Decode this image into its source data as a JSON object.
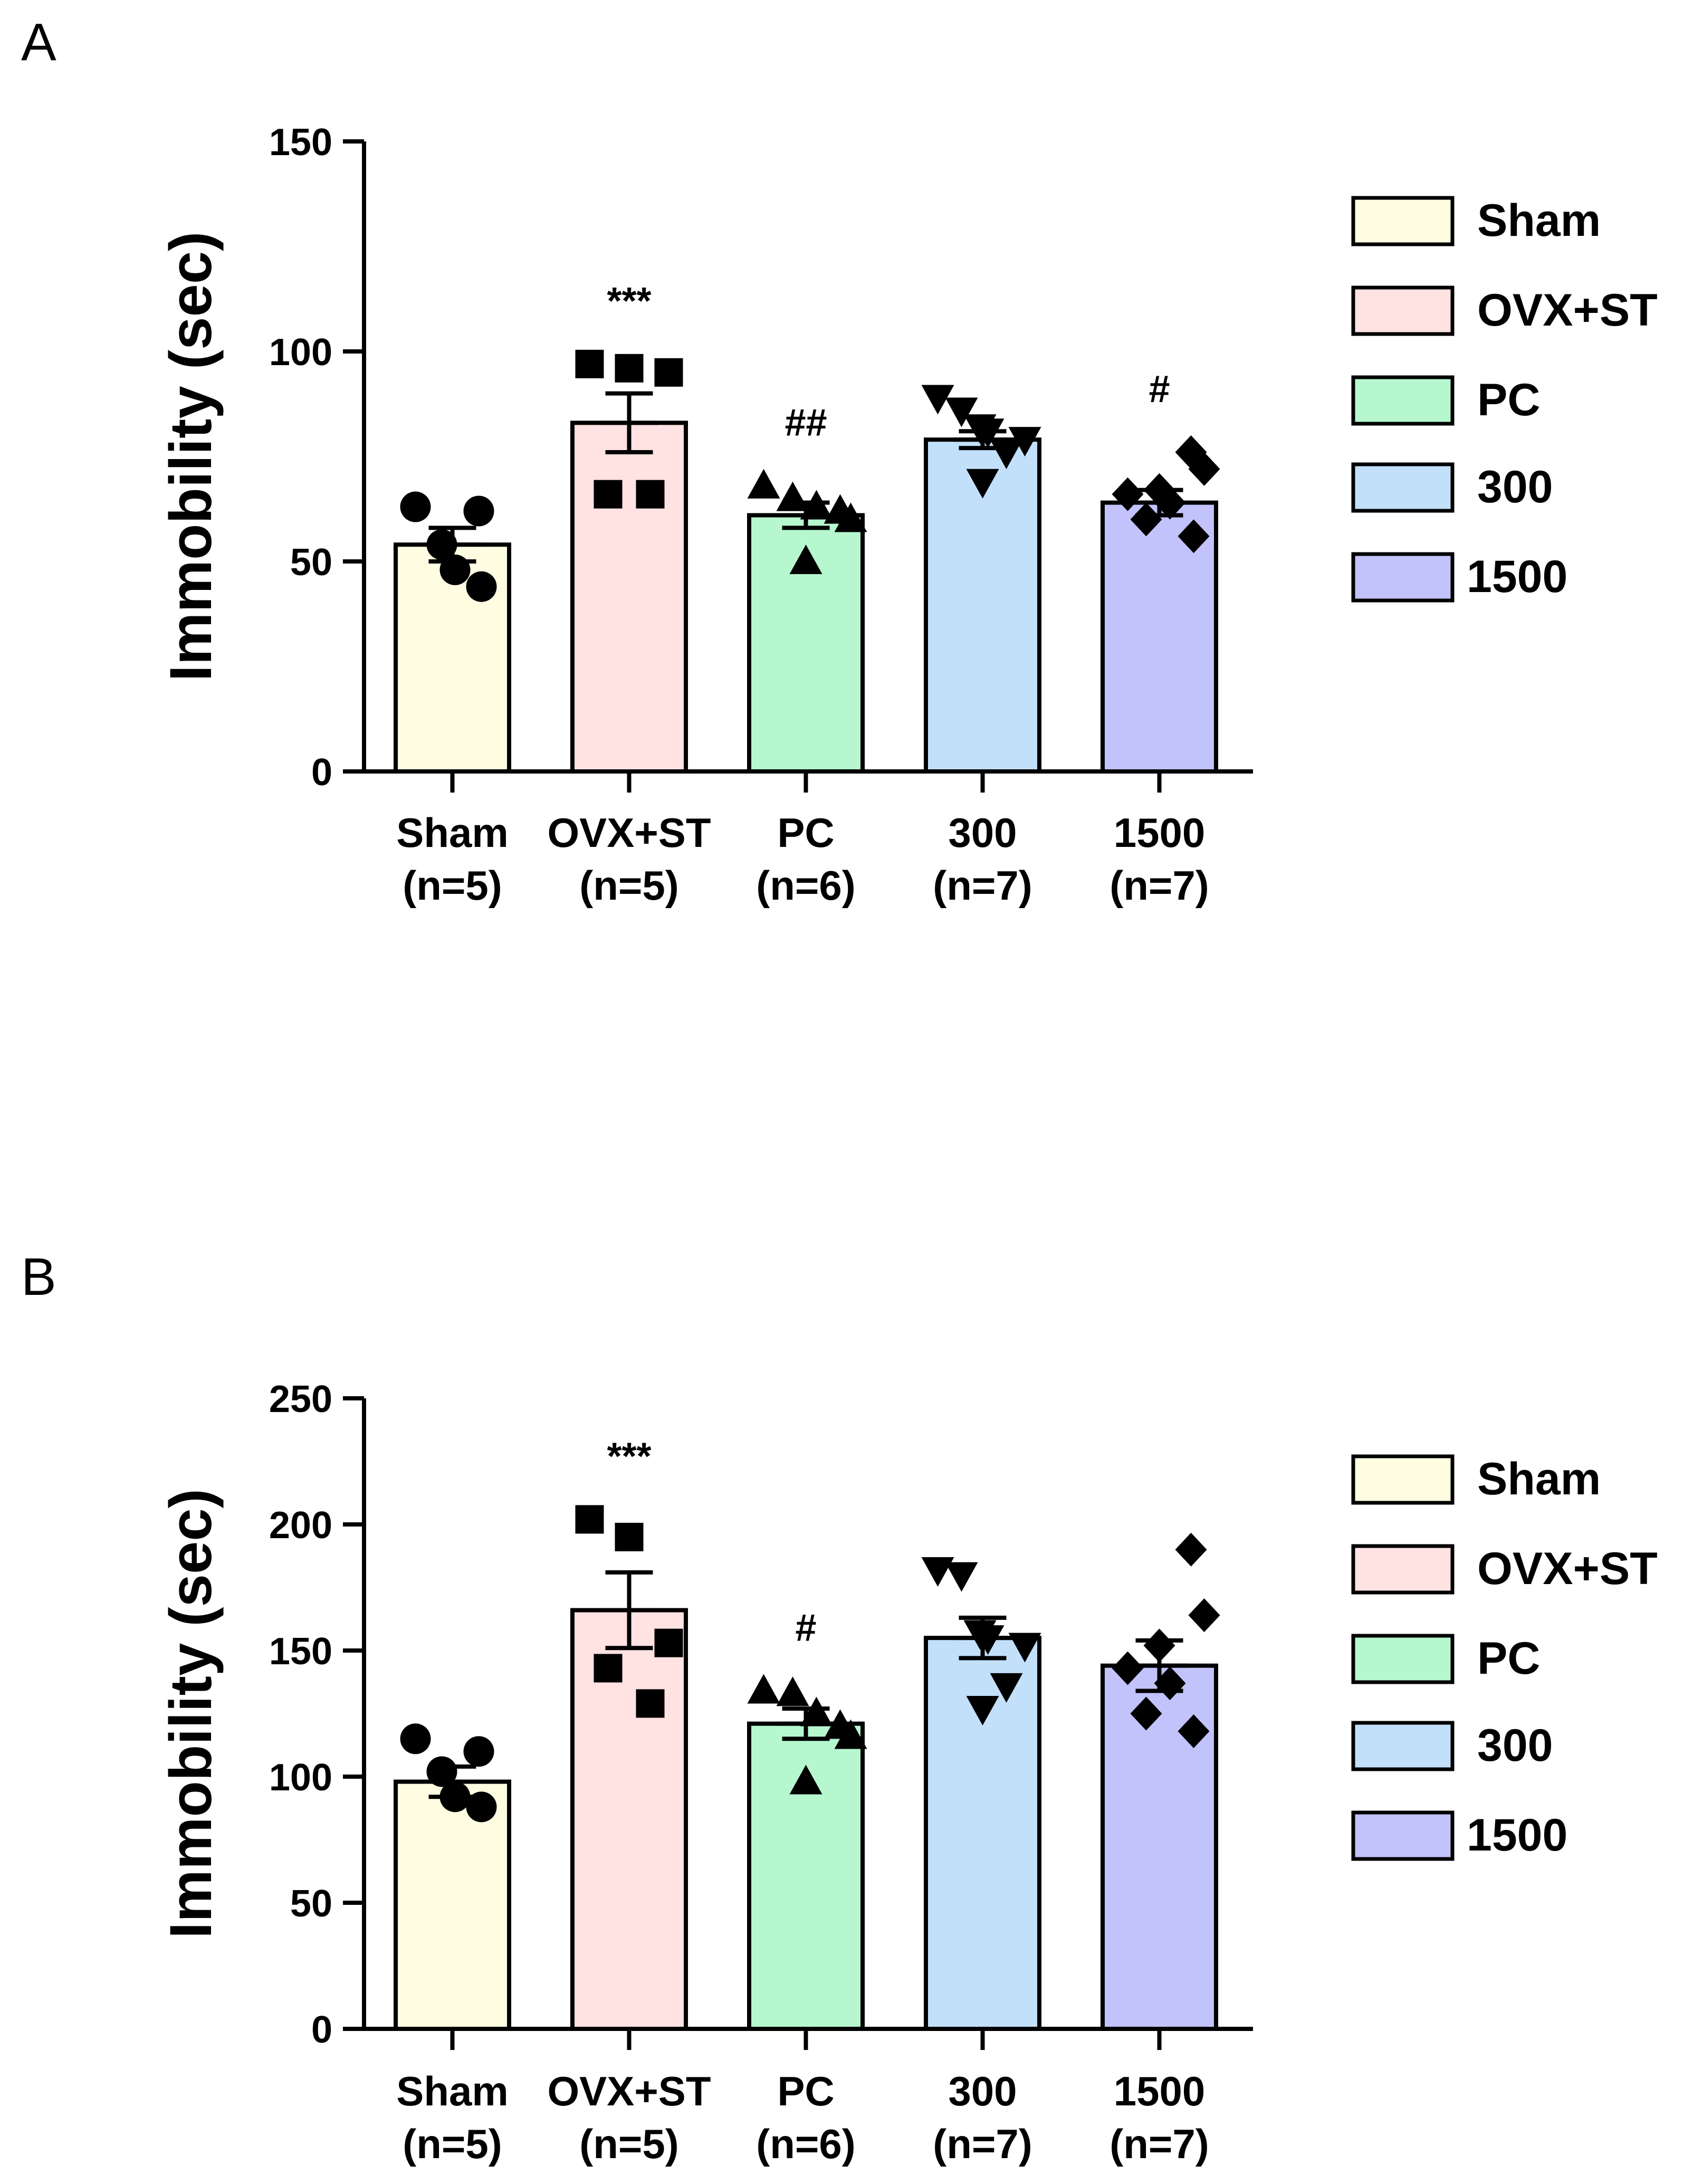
{
  "colors": {
    "Sham": "#FFFDE1",
    "OVX+ST": "#FFE2E2",
    "PC": "#B6F7CF",
    "300": "#C3E0FB",
    "1500": "#C2C3FB",
    "axis": "#000000"
  },
  "legend": [
    "Sham",
    "OVX+ST",
    "PC",
    "300",
    "1500"
  ],
  "chart_data": [
    {
      "panel": "A",
      "type": "bar",
      "ylabel": "Immobility (sec)",
      "xlabel": "",
      "ylim": [
        0,
        150
      ],
      "yticks": [
        "0",
        "50",
        "100",
        "150"
      ],
      "categories": [
        "Sham",
        "OVX+ST",
        "PC",
        "300",
        "1500"
      ],
      "category_n": [
        "(n=5)",
        "(n=5)",
        "(n=6)",
        "(n=7)",
        "(n=7)"
      ],
      "values": [
        54,
        83,
        61,
        79,
        64
      ],
      "sem": [
        4,
        7,
        3,
        2,
        3
      ],
      "markers": [
        "circle",
        "square",
        "triangle-up",
        "triangle-down",
        "diamond"
      ],
      "points": [
        [
          63,
          62,
          54,
          48,
          44
        ],
        [
          97,
          96,
          95,
          66,
          66
        ],
        [
          68,
          65,
          63,
          62,
          60,
          50
        ],
        [
          89,
          86,
          82,
          81,
          79,
          76,
          69
        ],
        [
          76,
          72,
          67,
          66,
          64,
          60,
          56
        ]
      ],
      "annotations": [
        "",
        "***",
        "##",
        "",
        "#"
      ]
    },
    {
      "panel": "B",
      "type": "bar",
      "ylabel": "Immobility (sec)",
      "xlabel": "",
      "ylim": [
        0,
        250
      ],
      "yticks": [
        "0",
        "50",
        "100",
        "150",
        "200",
        "250"
      ],
      "categories": [
        "Sham",
        "OVX+ST",
        "PC",
        "300",
        "1500"
      ],
      "category_n": [
        "(n=5)",
        "(n=5)",
        "(n=6)",
        "(n=7)",
        "(n=7)"
      ],
      "values": [
        98,
        166,
        121,
        155,
        144
      ],
      "sem": [
        6,
        15,
        6,
        8,
        10
      ],
      "markers": [
        "circle",
        "square",
        "triangle-up",
        "triangle-down",
        "diamond"
      ],
      "points": [
        [
          115,
          110,
          102,
          92,
          88
        ],
        [
          202,
          195,
          153,
          143,
          129
        ],
        [
          134,
          133,
          125,
          120,
          116,
          98
        ],
        [
          182,
          180,
          157,
          155,
          152,
          136,
          127
        ],
        [
          190,
          164,
          152,
          143,
          137,
          125,
          118
        ]
      ],
      "annotations": [
        "",
        "***",
        "#",
        "",
        ""
      ]
    }
  ]
}
